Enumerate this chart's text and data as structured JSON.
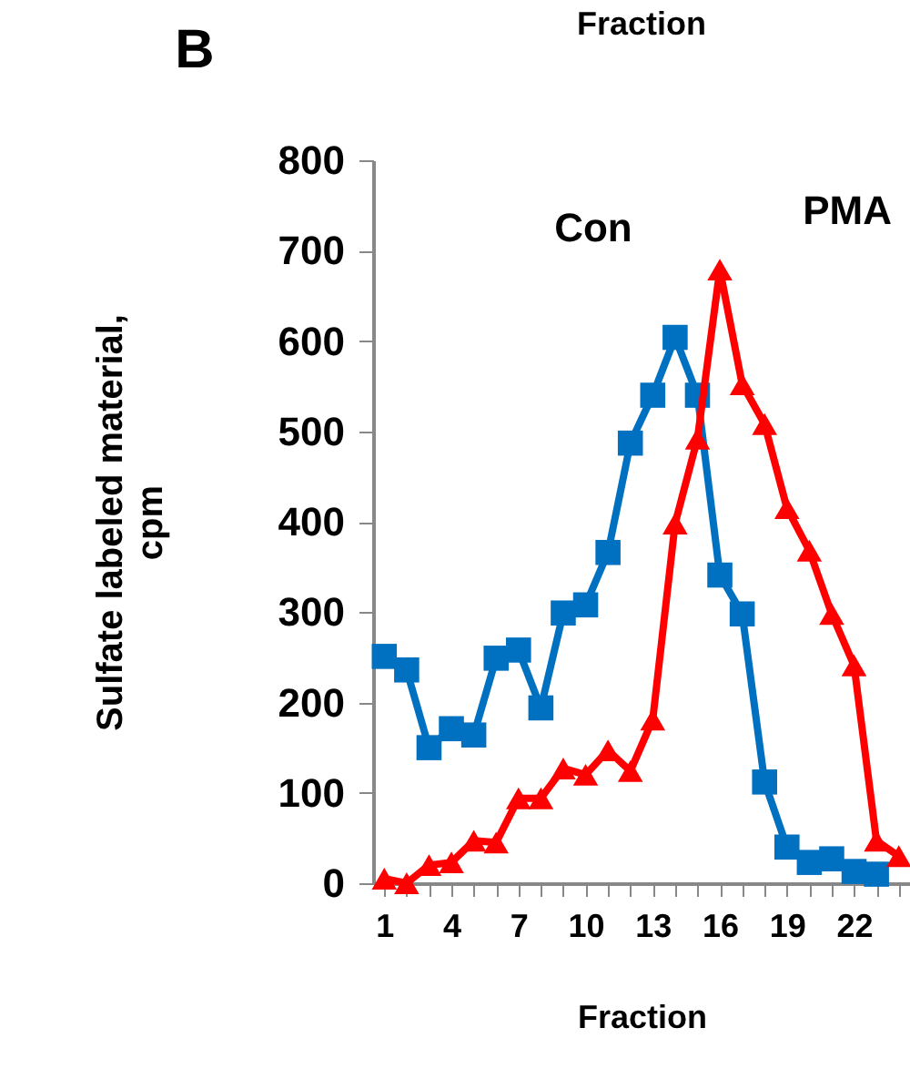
{
  "chart_data": {
    "type": "line",
    "title": "Fraction",
    "annotations": [
      "B"
    ],
    "xlabel": "Fraction",
    "ylabel": "Sulfate labeled material,\ncpm",
    "categories": [
      "1",
      null,
      null,
      "4",
      null,
      null,
      "7",
      null,
      null,
      "10",
      null,
      null,
      "13",
      null,
      null,
      "16",
      null,
      null,
      "19",
      null,
      null,
      "22",
      null,
      null
    ],
    "ylim": [
      0,
      800
    ],
    "yticks": [
      0,
      100,
      200,
      300,
      400,
      500,
      600,
      700,
      800
    ],
    "grid": false,
    "series": [
      {
        "name": "Con",
        "color": "#0070c0",
        "marker": "square",
        "values": [
          251,
          236,
          150,
          171,
          164,
          249,
          258,
          194,
          299,
          308,
          366,
          487,
          540,
          604,
          540,
          341,
          298,
          112,
          40,
          23,
          27,
          13,
          10,
          null
        ]
      },
      {
        "name": "PMA",
        "color": "#ff0000",
        "marker": "triangle",
        "values": [
          5,
          0,
          20,
          23,
          47,
          45,
          94,
          94,
          127,
          120,
          147,
          124,
          181,
          398,
          492,
          679,
          552,
          508,
          415,
          368,
          298,
          241,
          47,
          30
        ]
      }
    ]
  }
}
